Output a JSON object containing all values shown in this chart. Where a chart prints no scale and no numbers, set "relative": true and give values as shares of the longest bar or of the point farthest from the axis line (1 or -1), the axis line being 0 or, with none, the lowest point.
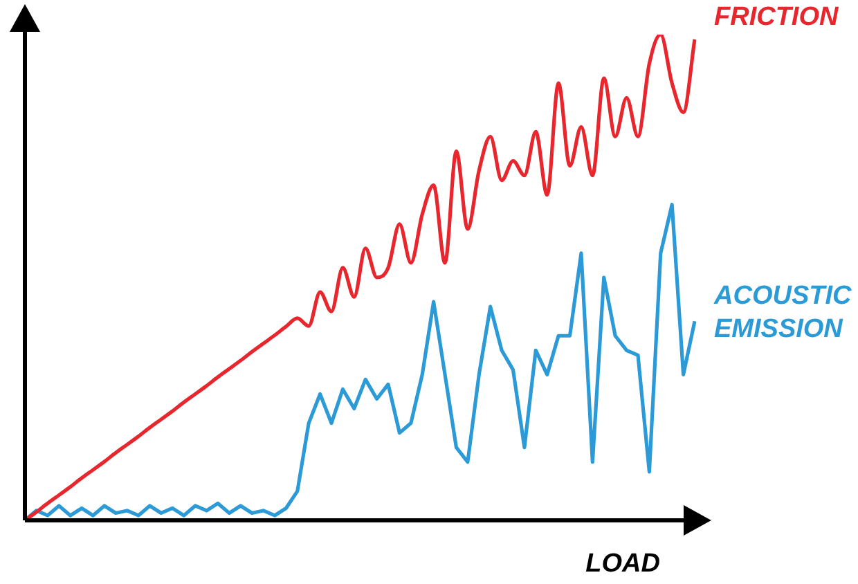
{
  "chart_data": {
    "type": "line",
    "relative": true,
    "xlabel": "LOAD",
    "categories": [
      null,
      null,
      null,
      null,
      null,
      null,
      null,
      null,
      null,
      null,
      null,
      null,
      null,
      null,
      null,
      null,
      null,
      null,
      null,
      null,
      null,
      null,
      null,
      null,
      null,
      null,
      null,
      null,
      null,
      null,
      null,
      null,
      null,
      null,
      null,
      null,
      null,
      null,
      null,
      null,
      null,
      null,
      null,
      null,
      null,
      null,
      null,
      null,
      null,
      null,
      null,
      null,
      null,
      null,
      null,
      null,
      null,
      null,
      null,
      null
    ],
    "series": [
      {
        "name": "FRICTION",
        "color": "#e8262d",
        "values": [
          0,
          0.017,
          0.035,
          0.052,
          0.069,
          0.087,
          0.104,
          0.121,
          0.139,
          0.156,
          0.173,
          0.191,
          0.208,
          0.225,
          0.243,
          0.26,
          0.277,
          0.295,
          0.312,
          0.329,
          0.347,
          0.364,
          0.381,
          0.399,
          0.416,
          0.4,
          0.47,
          0.43,
          0.52,
          0.46,
          0.56,
          0.5,
          0.52,
          0.61,
          0.53,
          0.63,
          0.69,
          0.53,
          0.76,
          0.6,
          0.72,
          0.79,
          0.7,
          0.74,
          0.71,
          0.8,
          0.67,
          0.9,
          0.73,
          0.81,
          0.71,
          0.91,
          0.79,
          0.87,
          0.79,
          0.94,
          1,
          0.9,
          0.84,
          0.99
        ]
      },
      {
        "name": "ACOUSTIC EMISSION",
        "color": "#2b9ad6",
        "values": [
          0,
          0.02,
          0.01,
          0.03,
          0.01,
          0.025,
          0.01,
          0.03,
          0.015,
          0.02,
          0.01,
          0.03,
          0.015,
          0.025,
          0.01,
          0.03,
          0.02,
          0.035,
          0.015,
          0.03,
          0.015,
          0.02,
          0.01,
          0.025,
          0.06,
          0.2,
          0.26,
          0.2,
          0.27,
          0.23,
          0.29,
          0.25,
          0.28,
          0.18,
          0.2,
          0.3,
          0.45,
          0.3,
          0.15,
          0.12,
          0.3,
          0.44,
          0.35,
          0.31,
          0.15,
          0.35,
          0.3,
          0.38,
          0.38,
          0.55,
          0.12,
          0.5,
          0.38,
          0.35,
          0.34,
          0.1,
          0.55,
          0.65,
          0.3,
          0.41
        ]
      }
    ]
  }
}
